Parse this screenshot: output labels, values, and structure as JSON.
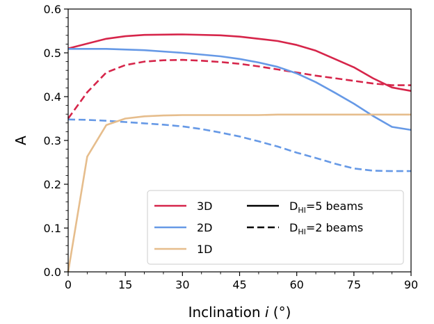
{
  "chart_data": {
    "type": "line",
    "xlabel": {
      "prefix": "Inclination ",
      "var": "i",
      "suffix": " (°)"
    },
    "ylabel": "A",
    "xlim": [
      0,
      90
    ],
    "ylim": [
      0.0,
      0.6
    ],
    "xticks": [
      0,
      15,
      30,
      45,
      60,
      75,
      90
    ],
    "yticks": [
      0.0,
      0.1,
      0.2,
      0.3,
      0.4,
      0.5,
      0.6
    ],
    "ytick_labels": [
      "0.0",
      "0.1",
      "0.2",
      "0.3",
      "0.4",
      "0.5",
      "0.6"
    ],
    "grid": false,
    "legend_position": "lower-right",
    "colors": {
      "3D": "#d6254a",
      "2D": "#6699e6",
      "1D": "#e6bd8c"
    },
    "series": [
      {
        "name": "3D",
        "style": "D_HI=5 beams",
        "x": [
          0,
          10,
          15,
          20,
          30,
          40,
          45,
          50,
          55,
          60,
          65,
          70,
          75,
          80,
          85,
          90
        ],
        "y": [
          0.51,
          0.532,
          0.538,
          0.541,
          0.542,
          0.54,
          0.537,
          0.532,
          0.527,
          0.518,
          0.505,
          0.486,
          0.467,
          0.442,
          0.421,
          0.413
        ]
      },
      {
        "name": "3D",
        "style": "D_HI=2 beams",
        "x": [
          0,
          5,
          10,
          15,
          20,
          25,
          30,
          35,
          40,
          45,
          50,
          55,
          60,
          65,
          70,
          75,
          80,
          85,
          90
        ],
        "y": [
          0.35,
          0.41,
          0.455,
          0.472,
          0.48,
          0.483,
          0.484,
          0.482,
          0.479,
          0.475,
          0.469,
          0.462,
          0.455,
          0.448,
          0.442,
          0.436,
          0.43,
          0.426,
          0.426
        ]
      },
      {
        "name": "2D",
        "style": "D_HI=5 beams",
        "x": [
          0,
          10,
          20,
          30,
          40,
          45,
          50,
          55,
          60,
          65,
          70,
          75,
          80,
          85,
          90
        ],
        "y": [
          0.509,
          0.509,
          0.506,
          0.5,
          0.492,
          0.486,
          0.478,
          0.468,
          0.453,
          0.433,
          0.409,
          0.384,
          0.356,
          0.331,
          0.324
        ]
      },
      {
        "name": "2D",
        "style": "D_HI=2 beams",
        "x": [
          0,
          5,
          10,
          15,
          20,
          25,
          30,
          35,
          40,
          45,
          50,
          55,
          60,
          65,
          70,
          75,
          80,
          85,
          90
        ],
        "y": [
          0.348,
          0.347,
          0.345,
          0.342,
          0.339,
          0.336,
          0.332,
          0.326,
          0.318,
          0.309,
          0.298,
          0.286,
          0.272,
          0.26,
          0.247,
          0.236,
          0.231,
          0.23,
          0.23
        ]
      },
      {
        "name": "1D",
        "style": "D_HI=5 beams",
        "x": [
          0,
          5,
          10,
          15,
          20,
          25,
          30,
          35,
          40,
          45,
          50,
          55,
          60,
          65,
          70,
          75,
          80,
          85,
          90
        ],
        "y": [
          0.0,
          0.263,
          0.335,
          0.35,
          0.355,
          0.357,
          0.358,
          0.358,
          0.358,
          0.358,
          0.358,
          0.359,
          0.359,
          0.359,
          0.359,
          0.359,
          0.359,
          0.359,
          0.359
        ]
      }
    ],
    "legend": {
      "series_entries": [
        {
          "label": "3D",
          "color": "#d6254a"
        },
        {
          "label": "2D",
          "color": "#6699e6"
        },
        {
          "label": "1D",
          "color": "#e6bd8c"
        }
      ],
      "style_entries": [
        {
          "label_main": "D",
          "label_sub": "HI",
          "label_rest": "=5 beams",
          "dash": "solid"
        },
        {
          "label_main": "D",
          "label_sub": "HI",
          "label_rest": "=2 beams",
          "dash": "dashed"
        }
      ]
    }
  }
}
